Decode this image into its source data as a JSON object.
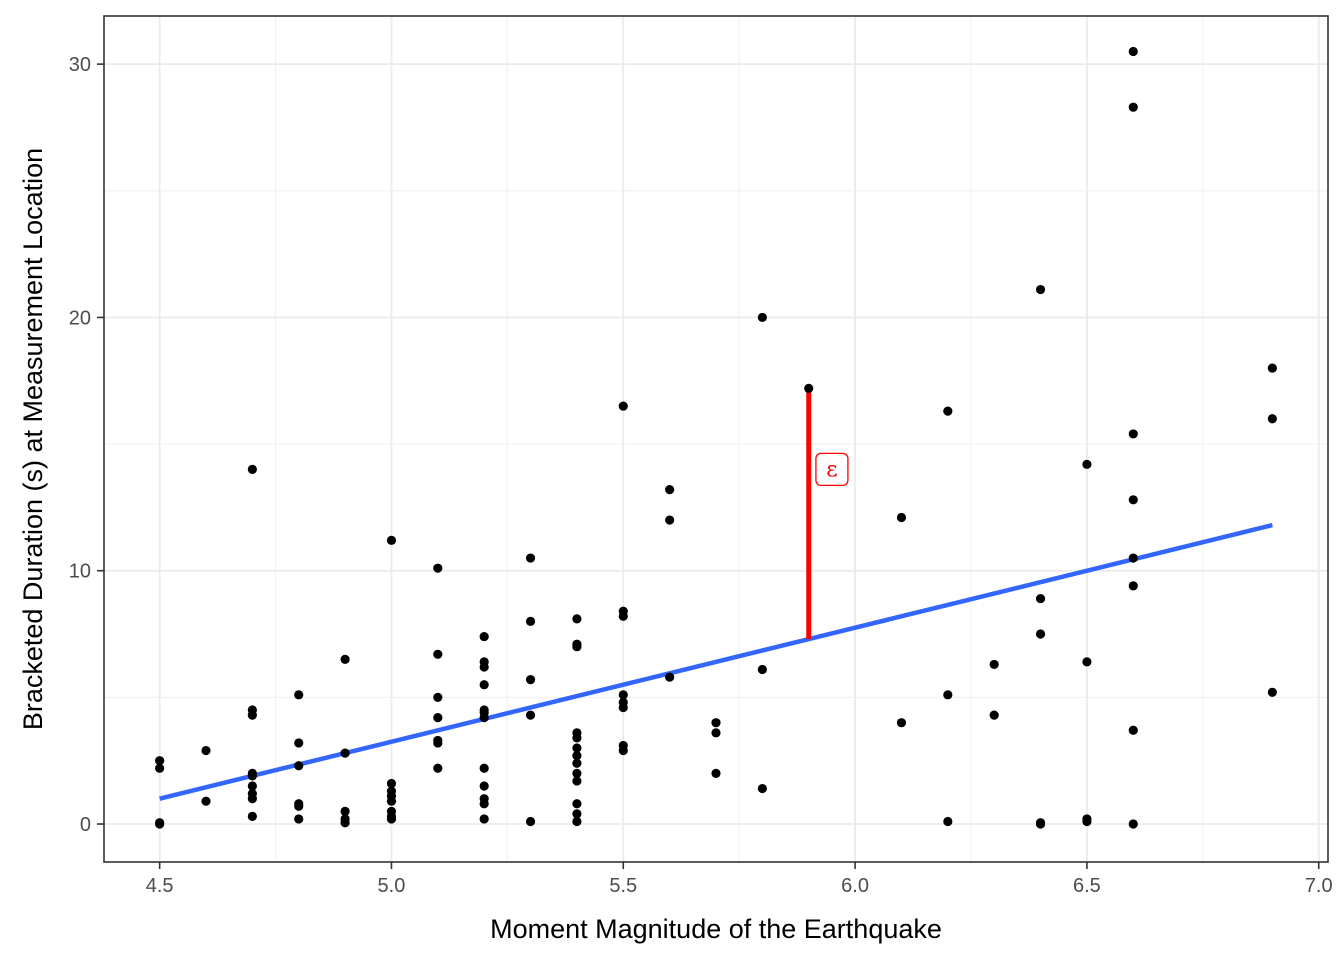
{
  "chart_data": {
    "type": "scatter",
    "title": "",
    "xlabel": "Moment Magnitude of the Earthquake",
    "ylabel": "Bracketed Duration (s) at Measurement Location",
    "xlim": [
      4.38,
      7.02
    ],
    "ylim": [
      -1.5,
      31.9
    ],
    "x_ticks": [
      4.5,
      5.0,
      5.5,
      6.0,
      6.5,
      7.0
    ],
    "x_tick_labels": [
      "4.5",
      "5.0",
      "5.5",
      "6.0",
      "6.5",
      "7.0"
    ],
    "y_ticks": [
      0,
      10,
      20,
      30
    ],
    "y_tick_labels": [
      "0",
      "10",
      "20",
      "30"
    ],
    "grid": true,
    "legend": "none",
    "colors": {
      "points": "#000000",
      "fit_line": "#3366ff",
      "residual": "#ff0000",
      "panel_border": "#333333",
      "grid": "#ebebeb"
    },
    "points": [
      [
        4.5,
        2.5
      ],
      [
        4.5,
        2.2
      ],
      [
        4.5,
        0.05
      ],
      [
        4.5,
        0.0
      ],
      [
        4.6,
        2.9
      ],
      [
        4.6,
        0.9
      ],
      [
        4.7,
        14.0
      ],
      [
        4.7,
        4.5
      ],
      [
        4.7,
        4.3
      ],
      [
        4.7,
        2.0
      ],
      [
        4.7,
        1.9
      ],
      [
        4.7,
        1.5
      ],
      [
        4.7,
        1.2
      ],
      [
        4.7,
        1.0
      ],
      [
        4.7,
        0.3
      ],
      [
        4.8,
        5.1
      ],
      [
        4.8,
        3.2
      ],
      [
        4.8,
        2.3
      ],
      [
        4.8,
        0.8
      ],
      [
        4.8,
        0.7
      ],
      [
        4.8,
        0.2
      ],
      [
        4.9,
        6.5
      ],
      [
        4.9,
        2.8
      ],
      [
        4.9,
        0.5
      ],
      [
        4.9,
        0.2
      ],
      [
        4.9,
        0.05
      ],
      [
        5.0,
        11.2
      ],
      [
        5.0,
        1.6
      ],
      [
        5.0,
        1.3
      ],
      [
        5.0,
        1.1
      ],
      [
        5.0,
        0.9
      ],
      [
        5.0,
        0.5
      ],
      [
        5.0,
        0.3
      ],
      [
        5.0,
        0.2
      ],
      [
        5.1,
        10.1
      ],
      [
        5.1,
        6.7
      ],
      [
        5.1,
        5.0
      ],
      [
        5.1,
        4.2
      ],
      [
        5.1,
        3.3
      ],
      [
        5.1,
        3.2
      ],
      [
        5.1,
        2.2
      ],
      [
        5.2,
        7.4
      ],
      [
        5.2,
        6.4
      ],
      [
        5.2,
        6.2
      ],
      [
        5.2,
        5.5
      ],
      [
        5.2,
        4.5
      ],
      [
        5.2,
        4.4
      ],
      [
        5.2,
        4.2
      ],
      [
        5.2,
        2.2
      ],
      [
        5.2,
        1.5
      ],
      [
        5.2,
        1.0
      ],
      [
        5.2,
        0.8
      ],
      [
        5.2,
        0.2
      ],
      [
        5.3,
        10.5
      ],
      [
        5.3,
        8.0
      ],
      [
        5.3,
        5.7
      ],
      [
        5.3,
        4.3
      ],
      [
        5.3,
        0.1
      ],
      [
        5.4,
        8.1
      ],
      [
        5.4,
        7.1
      ],
      [
        5.4,
        7.0
      ],
      [
        5.4,
        3.6
      ],
      [
        5.4,
        3.4
      ],
      [
        5.4,
        3.0
      ],
      [
        5.4,
        2.7
      ],
      [
        5.4,
        2.4
      ],
      [
        5.4,
        2.0
      ],
      [
        5.4,
        1.7
      ],
      [
        5.4,
        0.8
      ],
      [
        5.4,
        0.4
      ],
      [
        5.4,
        0.1
      ],
      [
        5.5,
        16.5
      ],
      [
        5.5,
        8.4
      ],
      [
        5.5,
        8.2
      ],
      [
        5.5,
        5.1
      ],
      [
        5.5,
        4.8
      ],
      [
        5.5,
        4.6
      ],
      [
        5.5,
        3.1
      ],
      [
        5.5,
        2.9
      ],
      [
        5.6,
        13.2
      ],
      [
        5.6,
        12.0
      ],
      [
        5.6,
        5.8
      ],
      [
        5.7,
        4.0
      ],
      [
        5.7,
        3.6
      ],
      [
        5.7,
        2.0
      ],
      [
        5.8,
        20.0
      ],
      [
        5.8,
        6.1
      ],
      [
        5.8,
        1.4
      ],
      [
        5.9,
        17.2
      ],
      [
        6.1,
        12.1
      ],
      [
        6.1,
        4.0
      ],
      [
        6.2,
        16.3
      ],
      [
        6.2,
        5.1
      ],
      [
        6.2,
        0.1
      ],
      [
        6.3,
        6.3
      ],
      [
        6.3,
        4.3
      ],
      [
        6.4,
        21.1
      ],
      [
        6.4,
        8.9
      ],
      [
        6.4,
        7.5
      ],
      [
        6.4,
        0.05
      ],
      [
        6.4,
        0.0
      ],
      [
        6.5,
        14.2
      ],
      [
        6.5,
        6.4
      ],
      [
        6.5,
        0.2
      ],
      [
        6.5,
        0.1
      ],
      [
        6.6,
        30.5
      ],
      [
        6.6,
        28.3
      ],
      [
        6.6,
        15.4
      ],
      [
        6.6,
        12.8
      ],
      [
        6.6,
        10.5
      ],
      [
        6.6,
        9.4
      ],
      [
        6.6,
        3.7
      ],
      [
        6.6,
        0.0
      ],
      [
        6.9,
        18.0
      ],
      [
        6.9,
        16.0
      ],
      [
        6.9,
        5.2
      ]
    ],
    "fit_line": {
      "x": [
        4.5,
        6.9
      ],
      "y": [
        1.0,
        11.8
      ]
    },
    "residual_segment": {
      "x": 5.9,
      "y_from": 7.3,
      "y_to": 17.2
    },
    "annotation": {
      "label": "ε",
      "x": 5.95,
      "y": 14.0
    }
  }
}
